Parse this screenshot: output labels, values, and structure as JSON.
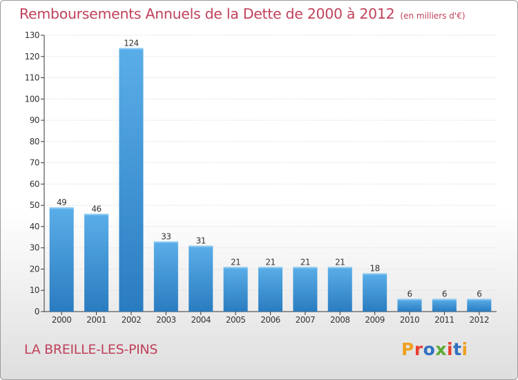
{
  "header": {
    "title": "Remboursements Annuels de la Dette de 2000 à 2012",
    "subtitle": "(en milliers d'€)"
  },
  "footer": {
    "commune": "LA BREILLE-LES-PINS",
    "logo_text": "Proxiti",
    "logo_colors": [
      "#f0a020",
      "#e84030",
      "#3070c0",
      "#5aaa30",
      "#e84030",
      "#3070c0",
      "#f0a020"
    ]
  },
  "colors": {
    "bar_light": "#5aaee8",
    "bar_dark": "#2a7cc0",
    "text": "#c0415a",
    "axis": "#333333",
    "grid": "#dddddd"
  },
  "chart_data": {
    "type": "bar",
    "categories": [
      "2000",
      "2001",
      "2002",
      "2003",
      "2004",
      "2005",
      "2006",
      "2007",
      "2008",
      "2009",
      "2010",
      "2011",
      "2012"
    ],
    "values": [
      49,
      46,
      124,
      33,
      31,
      21,
      21,
      21,
      21,
      18,
      6,
      6,
      6
    ],
    "ylim": [
      0,
      130
    ],
    "yticks": [
      0,
      10,
      20,
      30,
      40,
      50,
      60,
      70,
      80,
      90,
      100,
      110,
      120,
      130
    ],
    "grid": true,
    "data_labels": true
  }
}
